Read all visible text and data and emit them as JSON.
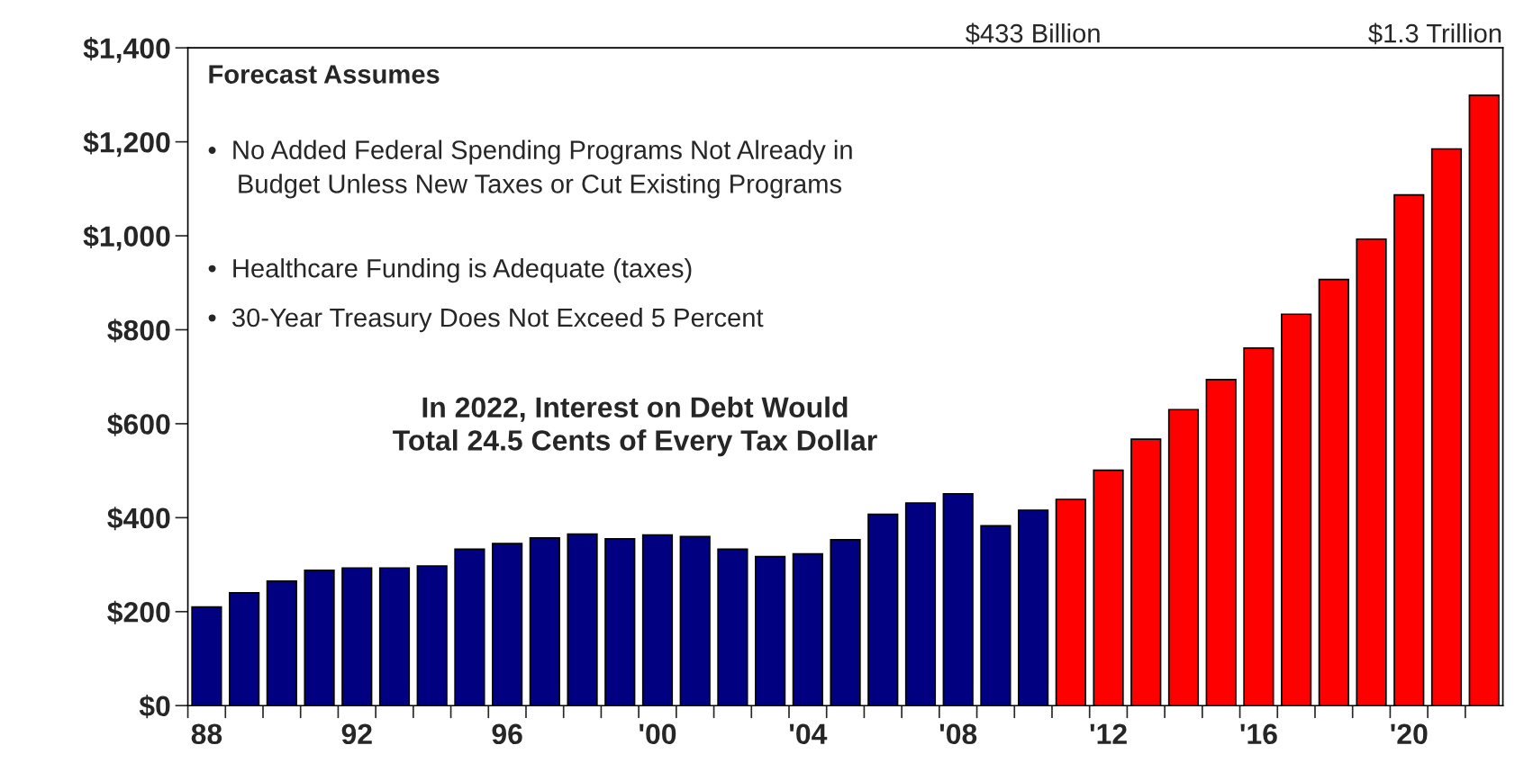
{
  "chart_data": {
    "type": "bar",
    "categories": [
      "88",
      null,
      null,
      null,
      "92",
      null,
      null,
      null,
      "96",
      null,
      null,
      null,
      "'00",
      null,
      null,
      null,
      "'04",
      null,
      null,
      null,
      "'08",
      null,
      null,
      null,
      "'12",
      null,
      null,
      null,
      "'16",
      null,
      null,
      null,
      "'20",
      null,
      null
    ],
    "values": [
      210,
      240,
      265,
      288,
      293,
      293,
      297,
      333,
      345,
      357,
      365,
      355,
      363,
      360,
      333,
      317,
      323,
      353,
      407,
      431,
      451,
      383,
      416,
      439,
      501,
      567,
      630,
      694,
      761,
      833,
      907,
      993,
      1087,
      1185,
      1299
    ],
    "colors": [
      "#000080",
      "#000080",
      "#000080",
      "#000080",
      "#000080",
      "#000080",
      "#000080",
      "#000080",
      "#000080",
      "#000080",
      "#000080",
      "#000080",
      "#000080",
      "#000080",
      "#000080",
      "#000080",
      "#000080",
      "#000080",
      "#000080",
      "#000080",
      "#000080",
      "#000080",
      "#000080",
      "#ff0000",
      "#ff0000",
      "#ff0000",
      "#ff0000",
      "#ff0000",
      "#ff0000",
      "#ff0000",
      "#ff0000",
      "#ff0000",
      "#ff0000",
      "#ff0000",
      "#ff0000"
    ],
    "ylim": [
      0,
      1400
    ],
    "yticks": [
      {
        "value": 0,
        "label": "$0"
      },
      {
        "value": 200,
        "label": "$200"
      },
      {
        "value": 400,
        "label": "$400"
      },
      {
        "value": 600,
        "label": "$600"
      },
      {
        "value": 800,
        "label": "$800"
      },
      {
        "value": 1000,
        "label": "$1,000"
      },
      {
        "value": 1200,
        "label": "$1,200"
      },
      {
        "value": 1400,
        "label": "$1,400"
      }
    ],
    "grid": false,
    "legend": false,
    "annotations": [
      "Forecast Assumes",
      "•  No Added Federal Spending Programs Not Already in\n    Budget Unless New Taxes or Cut Existing Programs",
      "•  Healthcare Funding is Adequate (taxes)",
      "•  30-Year Treasury Does Not Exceed 5 Percent",
      "In 2022, Interest on Debt Would\nTotal 24.5 Cents of Every Tax Dollar",
      "$433 Billion",
      "$1.3 Trillion"
    ]
  }
}
